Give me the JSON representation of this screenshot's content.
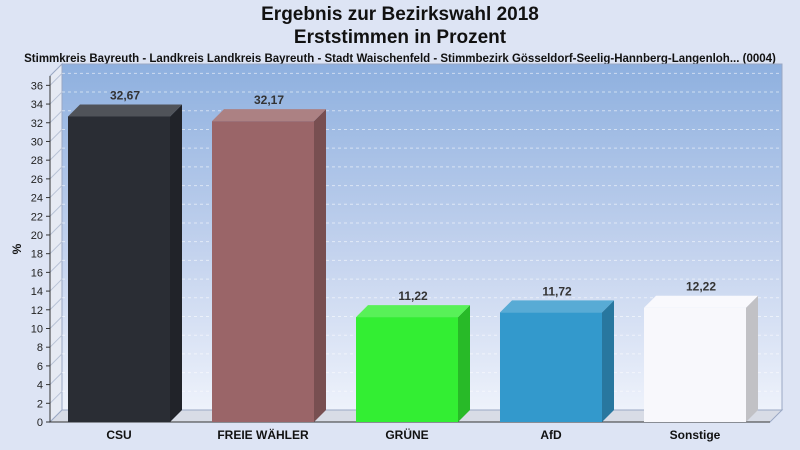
{
  "chart_data": {
    "type": "bar",
    "title": "Ergebnis zur Bezirkswahl 2018",
    "title_line2": "Erststimmen in Prozent",
    "subtitle": "Stimmkreis Bayreuth - Landkreis Landkreis Bayreuth - Stadt Waischenfeld - Stimmbezirk Gösseldorf-Seelig-Hannberg-Langenloh... (0004)",
    "ylabel": "%",
    "xlabel": "",
    "ylim": [
      0,
      37
    ],
    "yticks": [
      0,
      2,
      4,
      6,
      8,
      10,
      12,
      14,
      16,
      18,
      20,
      22,
      24,
      26,
      28,
      30,
      32,
      34,
      36
    ],
    "grid": true,
    "categories": [
      "CSU",
      "FREIE WÄHLER",
      "GRÜNE",
      "AfD",
      "Sonstige"
    ],
    "values": [
      32.67,
      32.17,
      11.22,
      11.72,
      12.22
    ],
    "value_labels": [
      "32,67",
      "32,17",
      "11,22",
      "11,72",
      "12,22"
    ],
    "colors": [
      "#2a2d34",
      "#9a6568",
      "#33ee33",
      "#3399cc",
      "#f8f8fc"
    ]
  }
}
